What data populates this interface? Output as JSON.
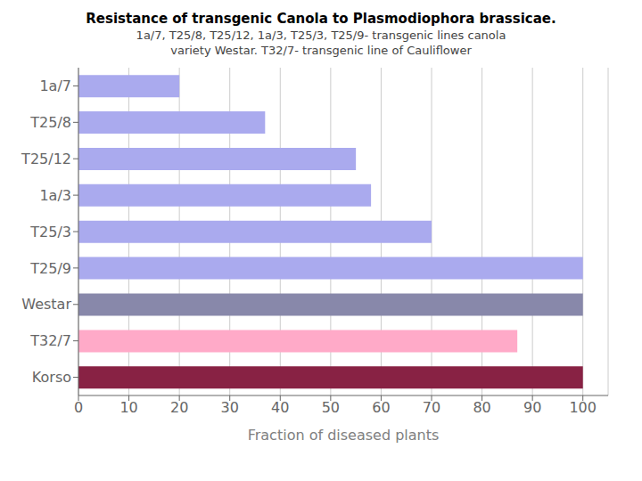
{
  "chart_data": {
    "type": "bar",
    "title": "Resistance of transgenic Canola to Plasmodiophora brassicae.",
    "subtitle": [
      "1a/7, T25/8, T25/12, 1a/3, T25/3, T25/9- transgenic lines canola",
      "variety Westar. T32/7- transgenic line of Cauliflower"
    ],
    "xlabel": "Fraction of diseased plants",
    "categories": [
      "1a/7",
      "T25/8",
      "T25/12",
      "1a/3",
      "T25/3",
      "T25/9",
      "Westar",
      "T32/7",
      "Korso"
    ],
    "values": [
      20,
      37,
      55,
      58,
      70,
      100,
      100,
      87,
      100
    ],
    "colors": [
      "#aaaaee",
      "#aaaaee",
      "#aaaaee",
      "#aaaaee",
      "#aaaaee",
      "#aaaaee",
      "#8888aa",
      "#ffaac8",
      "#882244"
    ],
    "xlim": [
      0,
      105
    ],
    "xticks": [
      0,
      10,
      20,
      30,
      40,
      50,
      60,
      70,
      80,
      90,
      100
    ],
    "orientation": "horizontal",
    "grid": true
  }
}
